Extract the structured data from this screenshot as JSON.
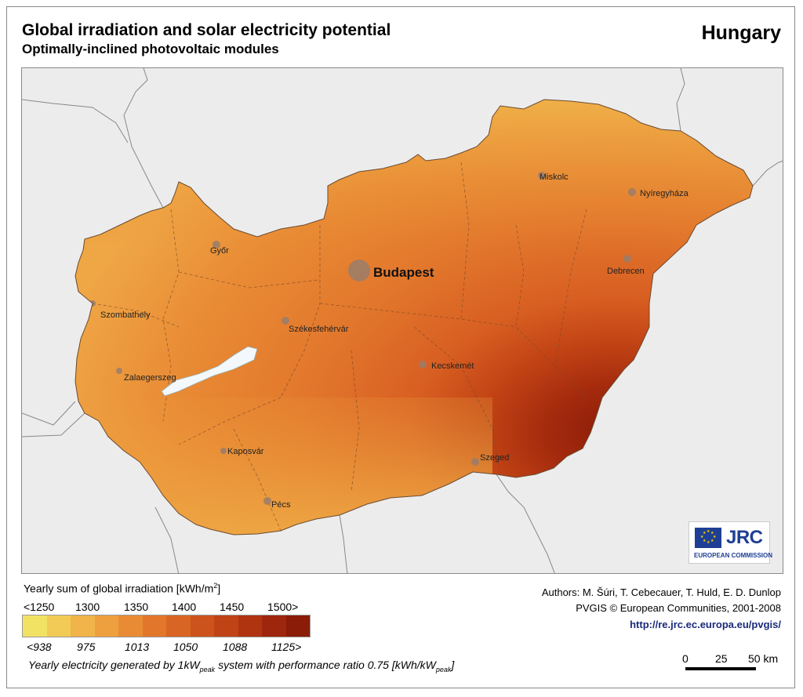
{
  "header": {
    "title": "Global irradiation and solar electricity potential",
    "subtitle": "Optimally-inclined photovoltaic modules",
    "country": "Hungary"
  },
  "map": {
    "capital": "Budapest",
    "cities": [
      "Miskolc",
      "Nyíregyháza",
      "Győr",
      "Debrecen",
      "Szombathely",
      "Székesfehérvár",
      "Kecskemét",
      "Zalaegerszeg",
      "Kaposvár",
      "Szeged",
      "Pécs"
    ],
    "logo": {
      "text": "JRC",
      "org": "EUROPEAN COMMISSION"
    }
  },
  "legend": {
    "title_prefix": "Yearly sum of global irradiation [kWh/m",
    "title_sup": "2",
    "title_suffix": "]",
    "irradiation_labels": [
      "<1250",
      "1300",
      "1350",
      "1400",
      "1450",
      "1500>"
    ],
    "electricity_labels": [
      "<938",
      "975",
      "1013",
      "1050",
      "1088",
      "1125>"
    ],
    "colors": [
      "#f2e264",
      "#f1cb55",
      "#f0b44a",
      "#eea03f",
      "#e98b35",
      "#e2772c",
      "#d96524",
      "#cd531c",
      "#c04316",
      "#b03410",
      "#9e260c",
      "#8a1c08"
    ],
    "footer_prefix": "Yearly electricity generated by 1kW",
    "footer_sub1": "peak",
    "footer_mid": " system with performance ratio 0.75 [kWh/kW",
    "footer_sub2": "peak",
    "footer_suffix": "]"
  },
  "credits": {
    "authors": "Authors: M. Šúri, T. Cebecauer, T. Huld, E. D. Dunlop",
    "pvgis": "PVGIS © European Communities, 2001-2008",
    "url": "http://re.jrc.ec.europa.eu/pvgis/"
  },
  "scalebar": {
    "labels": [
      "0",
      "25",
      "50 km"
    ]
  }
}
